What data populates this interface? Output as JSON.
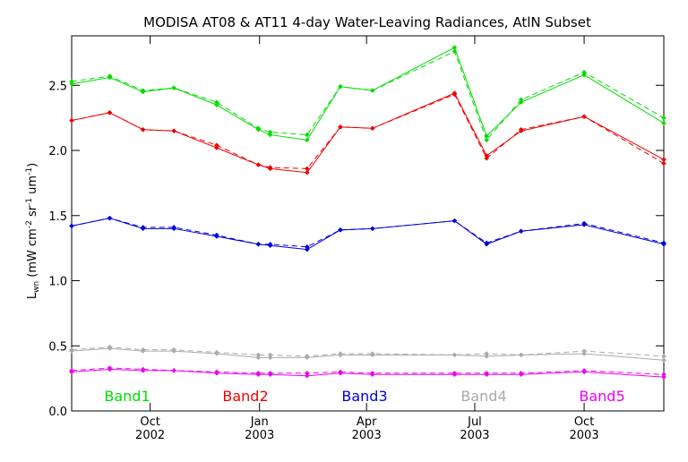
{
  "chart_data": {
    "type": "line",
    "title": "MODISA AT08 & AT11 4-day Water-Leaving Radiances, AtlN Subset",
    "ylabel_main": "L",
    "ylabel_sub": "wn",
    "ylabel_units_open": " (mW cm",
    "ylabel_exp1": "-2",
    "ylabel_units_mid": " sr",
    "ylabel_exp2": "-1",
    "ylabel_units_mid2": " um",
    "ylabel_exp3": "-1",
    "ylabel_units_close": ")",
    "ylim": [
      0,
      2.88
    ],
    "y_ticks": [
      0.0,
      0.5,
      1.0,
      1.5,
      2.0,
      2.5
    ],
    "y_tick_labels": [
      "0.0",
      "0.5",
      "1.0",
      "1.5",
      "2.0",
      "2.5"
    ],
    "xlim": [
      "2002-07-27",
      "2003-12-07"
    ],
    "x_ticks": [
      {
        "date": "2002-10-01",
        "month": "Oct",
        "year": "2002"
      },
      {
        "date": "2003-01-01",
        "month": "Jan",
        "year": "2003"
      },
      {
        "date": "2003-04-01",
        "month": "Apr",
        "year": "2003"
      },
      {
        "date": "2003-07-01",
        "month": "Jul",
        "year": "2003"
      },
      {
        "date": "2003-10-01",
        "month": "Oct",
        "year": "2003"
      }
    ],
    "x": [
      "2002-07-27",
      "2002-08-28",
      "2002-09-25",
      "2002-10-21",
      "2002-11-26",
      "2002-12-31",
      "2003-01-10",
      "2003-02-10",
      "2003-03-10",
      "2003-04-06",
      "2003-06-14",
      "2003-07-11",
      "2003-08-09",
      "2003-10-01",
      "2003-12-07"
    ],
    "series": [
      {
        "name": "Band1",
        "color": "#00dd00",
        "values": [
          2.51,
          2.56,
          2.45,
          2.48,
          2.35,
          2.16,
          2.12,
          2.08,
          2.49,
          2.46,
          2.79,
          2.11,
          2.37,
          2.58,
          2.21
        ],
        "values_dashed": [
          2.53,
          2.57,
          2.46,
          2.48,
          2.37,
          2.17,
          2.14,
          2.12,
          2.49,
          2.46,
          2.76,
          2.08,
          2.39,
          2.6,
          2.25
        ]
      },
      {
        "name": "Band2",
        "color": "#ee0000",
        "values": [
          2.23,
          2.29,
          2.16,
          2.15,
          2.02,
          1.89,
          1.86,
          1.83,
          2.18,
          2.17,
          2.44,
          1.96,
          2.15,
          2.26,
          1.93
        ],
        "values_dashed": [
          2.23,
          2.29,
          2.16,
          2.15,
          2.04,
          1.89,
          1.87,
          1.86,
          2.18,
          2.17,
          2.43,
          1.94,
          2.16,
          2.26,
          1.9
        ]
      },
      {
        "name": "Band3",
        "color": "#0000dd",
        "values": [
          1.42,
          1.48,
          1.4,
          1.4,
          1.34,
          1.28,
          1.27,
          1.24,
          1.39,
          1.4,
          1.46,
          1.28,
          1.38,
          1.43,
          1.28
        ],
        "values_dashed": [
          1.42,
          1.48,
          1.41,
          1.41,
          1.35,
          1.28,
          1.28,
          1.26,
          1.39,
          1.4,
          1.46,
          1.29,
          1.38,
          1.44,
          1.29
        ]
      },
      {
        "name": "Band4",
        "color": "#aaaaaa",
        "values": [
          0.46,
          0.48,
          0.46,
          0.46,
          0.44,
          0.41,
          0.41,
          0.41,
          0.43,
          0.43,
          0.43,
          0.42,
          0.43,
          0.44,
          0.39
        ],
        "values_dashed": [
          0.47,
          0.49,
          0.47,
          0.47,
          0.45,
          0.43,
          0.43,
          0.42,
          0.44,
          0.44,
          0.43,
          0.44,
          0.43,
          0.46,
          0.42
        ]
      },
      {
        "name": "Band5",
        "color": "#ee00ee",
        "values": [
          0.3,
          0.32,
          0.31,
          0.31,
          0.29,
          0.28,
          0.28,
          0.27,
          0.29,
          0.28,
          0.28,
          0.28,
          0.28,
          0.3,
          0.26
        ],
        "values_dashed": [
          0.31,
          0.33,
          0.32,
          0.31,
          0.3,
          0.29,
          0.29,
          0.29,
          0.3,
          0.29,
          0.29,
          0.29,
          0.29,
          0.31,
          0.28
        ]
      }
    ]
  }
}
